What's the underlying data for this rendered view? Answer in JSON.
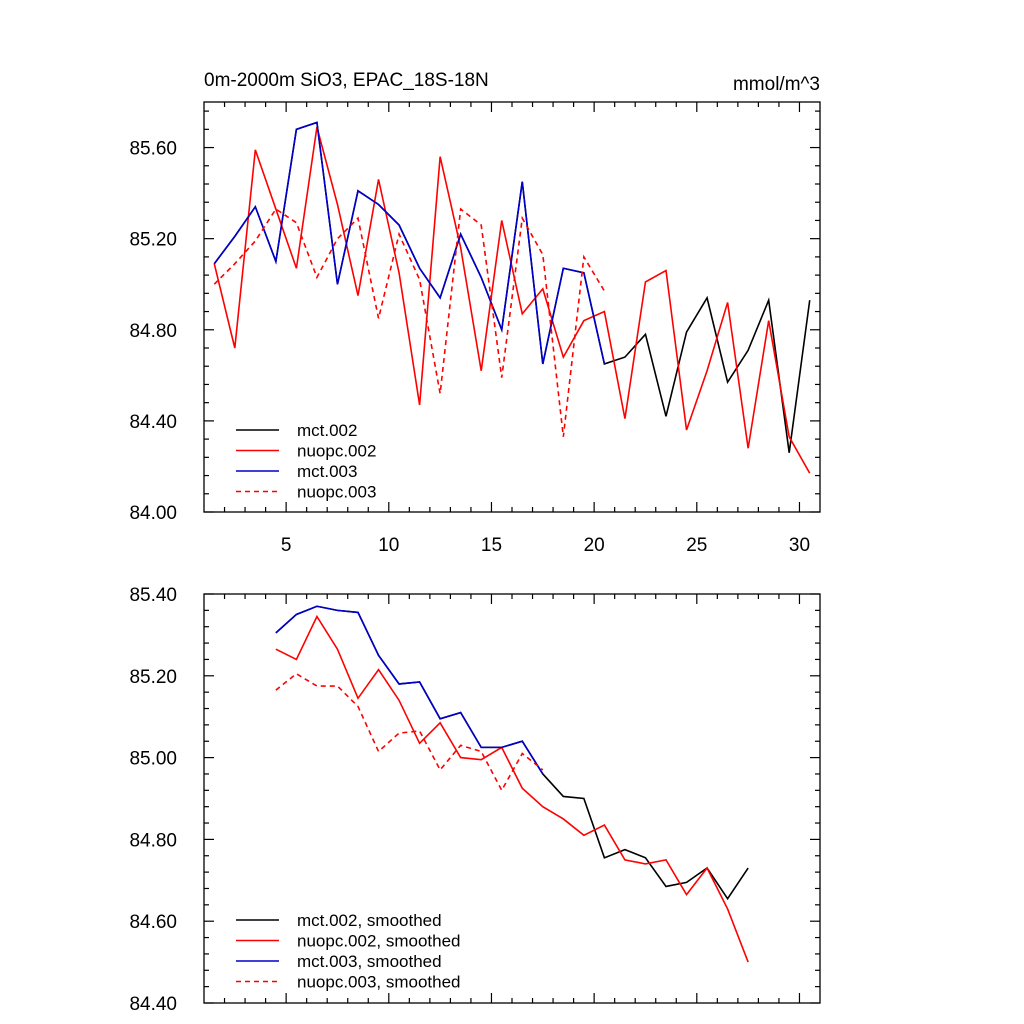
{
  "chart_data": [
    {
      "type": "line",
      "title": "0m-2000m SiO3, EPAC_18S-18N",
      "units": "mmol/m^3",
      "xlim": [
        1,
        31
      ],
      "ylim": [
        84.0,
        85.8
      ],
      "xticks": [
        5,
        10,
        15,
        20,
        25,
        30
      ],
      "yticks": [
        84.0,
        84.4,
        84.8,
        85.2,
        85.6
      ],
      "xtick_labels": [
        "5",
        "10",
        "15",
        "20",
        "25",
        "30"
      ],
      "ytick_labels": [
        "84.00",
        "84.40",
        "84.80",
        "85.20",
        "85.60"
      ],
      "legend_position": "bottom-left",
      "series": [
        {
          "name": "mct.002",
          "color": "#000000",
          "dash": "solid",
          "x": [
            1.5,
            2.5,
            3.5,
            4.5,
            5.5,
            6.5,
            7.5,
            8.5,
            9.5,
            10.5,
            11.5,
            12.5,
            13.5,
            14.5,
            15.5,
            16.5,
            17.5,
            18.5,
            19.5,
            20.5,
            21.5,
            22.5,
            23.5,
            24.5,
            25.5,
            26.5,
            27.5,
            28.5,
            29.5,
            30.5
          ],
          "values": [
            85.09,
            85.21,
            85.34,
            85.1,
            85.68,
            85.71,
            85.0,
            85.41,
            85.35,
            85.26,
            85.07,
            84.94,
            85.22,
            85.03,
            84.8,
            85.45,
            84.65,
            85.07,
            85.05,
            84.65,
            84.68,
            84.78,
            84.42,
            84.79,
            84.94,
            84.57,
            84.71,
            84.93,
            84.26,
            84.93
          ]
        },
        {
          "name": "nuopc.002",
          "color": "#ff0000",
          "dash": "solid",
          "x": [
            1.5,
            2.5,
            3.5,
            4.5,
            5.5,
            6.5,
            7.5,
            8.5,
            9.5,
            10.5,
            11.5,
            12.5,
            13.5,
            14.5,
            15.5,
            16.5,
            17.5,
            18.5,
            19.5,
            20.5,
            21.5,
            22.5,
            23.5,
            24.5,
            25.5,
            26.5,
            27.5,
            28.5,
            29.5,
            30.5
          ],
          "values": [
            85.09,
            84.72,
            85.59,
            85.33,
            85.07,
            85.69,
            85.35,
            84.95,
            85.46,
            85.05,
            84.47,
            85.56,
            85.16,
            84.62,
            85.28,
            84.87,
            84.98,
            84.68,
            84.84,
            84.88,
            84.41,
            85.01,
            85.06,
            84.36,
            84.62,
            84.92,
            84.28,
            84.84,
            84.33,
            84.17
          ]
        },
        {
          "name": "mct.003",
          "color": "#0000cc",
          "dash": "solid",
          "x": [
            1.5,
            2.5,
            3.5,
            4.5,
            5.5,
            6.5,
            7.5,
            8.5,
            9.5,
            10.5,
            11.5,
            12.5,
            13.5,
            14.5,
            15.5,
            16.5,
            17.5,
            18.5,
            19.5,
            20.5
          ],
          "values": [
            85.09,
            85.21,
            85.34,
            85.1,
            85.68,
            85.71,
            85.0,
            85.41,
            85.35,
            85.26,
            85.07,
            84.94,
            85.22,
            85.03,
            84.8,
            85.45,
            84.65,
            85.07,
            85.05,
            84.65
          ]
        },
        {
          "name": "nuopc.003",
          "color": "#ff0000",
          "dash": "dashed",
          "x": [
            1.5,
            2.5,
            3.5,
            4.5,
            5.5,
            6.5,
            7.5,
            8.5,
            9.5,
            10.5,
            11.5,
            12.5,
            13.5,
            14.5,
            15.5,
            16.5,
            17.5,
            18.5,
            19.5,
            20.5
          ],
          "values": [
            85.0,
            85.09,
            85.19,
            85.33,
            85.27,
            85.03,
            85.2,
            85.29,
            84.85,
            85.22,
            85.02,
            84.52,
            85.33,
            85.26,
            84.59,
            85.29,
            85.13,
            84.33,
            85.12,
            84.97
          ]
        }
      ]
    },
    {
      "type": "line",
      "title": "",
      "units": "",
      "xlim": [
        1,
        31
      ],
      "ylim": [
        84.4,
        85.4
      ],
      "xticks": [
        5,
        10,
        15,
        20,
        25,
        30
      ],
      "yticks": [
        84.4,
        84.6,
        84.8,
        85.0,
        85.2,
        85.4
      ],
      "xtick_labels": [],
      "ytick_labels": [
        "84.40",
        "84.60",
        "84.80",
        "85.00",
        "85.20",
        "85.40"
      ],
      "legend_position": "bottom-left",
      "series": [
        {
          "name": "mct.002, smoothed",
          "color": "#000000",
          "dash": "solid",
          "x": [
            4.5,
            5.5,
            6.5,
            7.5,
            8.5,
            9.5,
            10.5,
            11.5,
            12.5,
            13.5,
            14.5,
            15.5,
            16.5,
            17.5,
            18.5,
            19.5,
            20.5,
            21.5,
            22.5,
            23.5,
            24.5,
            25.5,
            26.5,
            27.5
          ],
          "values": [
            85.305,
            85.35,
            85.37,
            85.36,
            85.355,
            85.25,
            85.18,
            85.185,
            85.095,
            85.11,
            85.025,
            85.025,
            85.04,
            84.96,
            84.905,
            84.9,
            84.755,
            84.775,
            84.755,
            84.685,
            84.695,
            84.73,
            84.655,
            84.73
          ]
        },
        {
          "name": "nuopc.002, smoothed",
          "color": "#ff0000",
          "dash": "solid",
          "x": [
            4.5,
            5.5,
            6.5,
            7.5,
            8.5,
            9.5,
            10.5,
            11.5,
            12.5,
            13.5,
            14.5,
            15.5,
            16.5,
            17.5,
            18.5,
            19.5,
            20.5,
            21.5,
            22.5,
            23.5,
            24.5,
            25.5,
            26.5,
            27.5
          ],
          "values": [
            85.265,
            85.24,
            85.345,
            85.265,
            85.145,
            85.215,
            85.14,
            85.035,
            85.085,
            85.0,
            84.995,
            85.025,
            84.925,
            84.88,
            84.85,
            84.81,
            84.835,
            84.75,
            84.74,
            84.75,
            84.665,
            84.73,
            84.63,
            84.5
          ]
        },
        {
          "name": "mct.003, smoothed",
          "color": "#0000cc",
          "dash": "solid",
          "x": [
            4.5,
            5.5,
            6.5,
            7.5,
            8.5,
            9.5,
            10.5,
            11.5,
            12.5,
            13.5,
            14.5,
            15.5,
            16.5,
            17.5
          ],
          "values": [
            85.305,
            85.35,
            85.37,
            85.36,
            85.355,
            85.25,
            85.18,
            85.185,
            85.095,
            85.11,
            85.025,
            85.025,
            85.04,
            84.96
          ]
        },
        {
          "name": "nuopc.003, smoothed",
          "color": "#ff0000",
          "dash": "dashed",
          "x": [
            4.5,
            5.5,
            6.5,
            7.5,
            8.5,
            9.5,
            10.5,
            11.5,
            12.5,
            13.5,
            14.5,
            15.5,
            16.5,
            17.5
          ],
          "values": [
            85.165,
            85.205,
            85.175,
            85.175,
            85.125,
            85.015,
            85.06,
            85.065,
            84.97,
            85.03,
            85.015,
            84.92,
            85.01,
            84.97
          ]
        }
      ]
    }
  ]
}
